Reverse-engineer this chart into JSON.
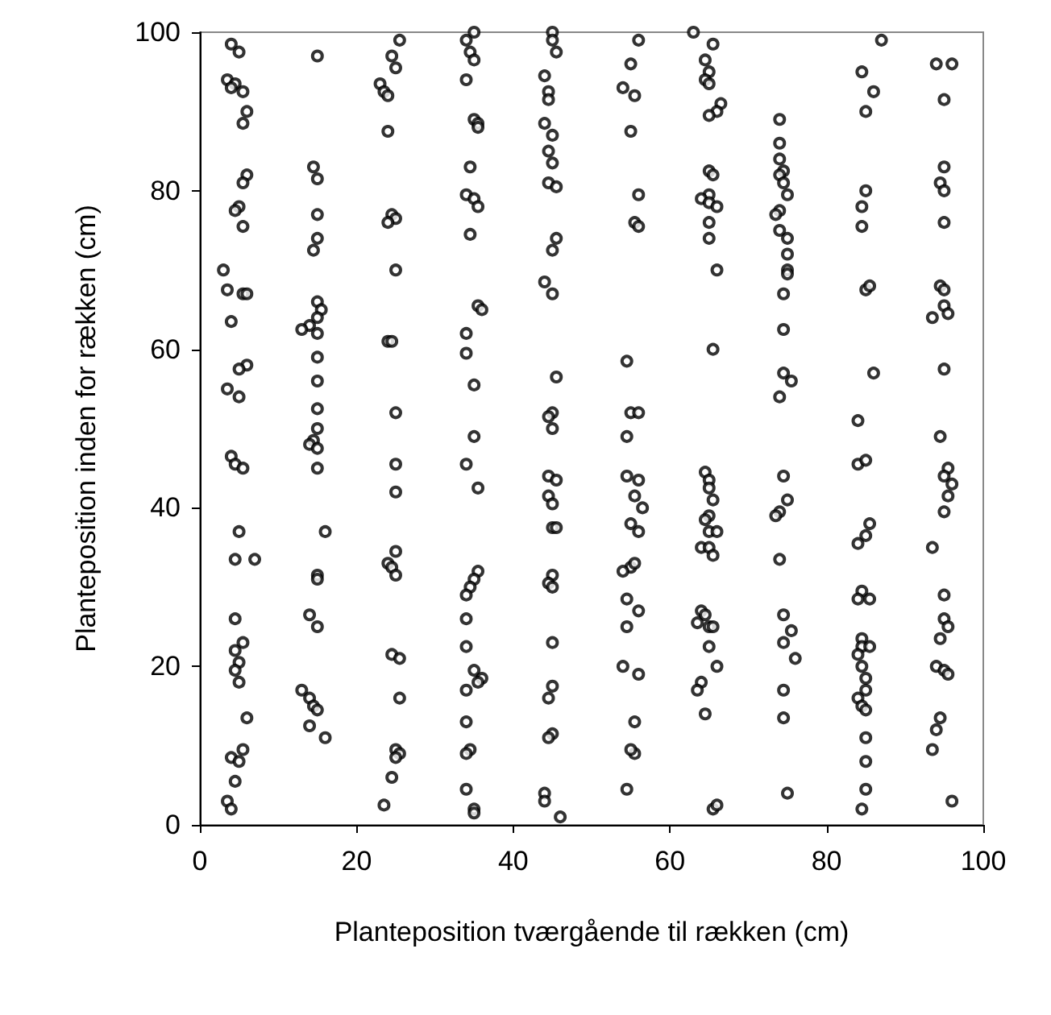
{
  "chart_data": {
    "type": "scatter",
    "xlabel": "Planteposition tværgående til rækken (cm)",
    "ylabel": "Planteposition inden for rækken (cm)",
    "color": "#000000",
    "marker": "circle",
    "grid": false,
    "xlim": [
      0,
      100
    ],
    "ylim": [
      0,
      100
    ],
    "xticks": [
      0,
      20,
      40,
      60,
      80,
      100
    ],
    "yticks": [
      0,
      20,
      40,
      60,
      80,
      100
    ],
    "x": [
      4,
      5,
      3.5,
      4.5,
      4,
      5.5,
      6,
      5.5,
      6,
      5.5,
      5,
      4.5,
      5.5,
      3,
      3.5,
      5.5,
      6,
      4,
      6,
      5,
      3.5,
      5,
      4,
      4.5,
      5.5,
      5,
      4.5,
      7,
      4.5,
      5.5,
      4.5,
      5,
      4.5,
      5,
      6,
      5.5,
      4,
      5,
      4.5,
      3.5,
      4,
      15,
      14.5,
      15,
      15,
      15,
      14.5,
      15,
      15.5,
      15,
      14,
      15,
      13,
      15,
      15,
      15,
      15,
      14.5,
      14,
      15,
      15,
      16,
      15,
      15,
      14,
      15,
      13,
      14,
      14.5,
      15,
      14,
      16,
      25.5,
      24.5,
      25,
      23,
      23.5,
      24,
      24,
      24.5,
      25,
      24,
      25,
      24,
      24.5,
      25,
      25,
      25,
      25,
      24,
      24.5,
      25,
      24.5,
      25.5,
      25.5,
      25,
      25.5,
      25,
      24.5,
      23.5,
      35,
      34,
      34.5,
      35,
      34,
      35,
      35.5,
      35.5,
      34.5,
      34,
      35,
      35.5,
      34.5,
      35.5,
      36,
      34,
      34,
      35,
      35,
      34,
      35.5,
      35.5,
      35,
      34.5,
      34,
      34,
      34,
      35,
      36,
      35.5,
      34,
      34,
      34.5,
      34,
      34,
      35,
      35,
      45,
      45,
      45.5,
      44,
      44.5,
      44.5,
      44,
      45,
      44.5,
      45,
      44.5,
      45.5,
      45.5,
      45,
      44,
      45,
      45.5,
      45,
      44.5,
      45,
      44.5,
      45.5,
      44.5,
      45,
      45,
      45.5,
      45,
      44.5,
      45,
      45,
      45,
      44.5,
      45,
      44.5,
      44,
      44,
      46,
      56,
      55,
      54,
      55.5,
      55,
      55.5,
      56,
      56,
      54.5,
      55,
      56,
      54.5,
      54.5,
      56,
      55.5,
      56.5,
      55,
      56,
      55,
      55.5,
      54,
      54.5,
      56,
      54.5,
      54,
      56,
      55.5,
      55.5,
      55,
      54.5,
      63,
      65.5,
      64.5,
      65,
      64.5,
      65,
      66.5,
      66,
      65,
      65,
      65.5,
      65,
      64,
      65,
      66,
      65,
      65,
      66,
      65.5,
      64.5,
      65,
      65,
      65.5,
      65,
      64.5,
      65,
      66,
      64,
      65,
      65.5,
      64,
      64.5,
      63.5,
      65,
      65.5,
      65,
      66,
      64,
      63.5,
      64.5,
      65.5,
      66,
      74,
      74,
      74,
      74.5,
      74,
      74.5,
      75,
      74,
      73.5,
      74,
      75,
      75,
      75,
      75,
      74.5,
      74.5,
      74.5,
      75.5,
      74,
      74.5,
      75,
      74,
      73.5,
      74,
      74.5,
      75.5,
      74.5,
      76,
      74.5,
      74.5,
      75,
      87,
      84.5,
      86,
      85,
      85,
      84.5,
      84.5,
      85,
      85.5,
      86,
      84,
      84,
      85,
      85.5,
      85,
      84,
      84.5,
      84,
      85.5,
      84.5,
      84.5,
      85.5,
      84,
      84.5,
      85,
      85,
      84,
      84.5,
      85,
      85,
      85,
      85,
      84.5,
      94,
      96,
      95,
      95,
      94.5,
      95,
      95,
      94.5,
      95,
      93.5,
      95,
      95.5,
      95,
      94.5,
      95.5,
      95,
      96,
      95.5,
      95,
      93.5,
      95,
      95,
      95.5,
      94.5,
      94,
      95,
      95.5,
      94.5,
      94,
      93.5,
      96
    ],
    "values": [
      98.5,
      97.5,
      94,
      93.5,
      93,
      92.5,
      90,
      88.5,
      82,
      81,
      78,
      77.5,
      75.5,
      70,
      67.5,
      67,
      67,
      63.5,
      58,
      57.5,
      55,
      54,
      46.5,
      45.5,
      45,
      37,
      33.5,
      33.5,
      26,
      23,
      22,
      20.5,
      19.5,
      18,
      13.5,
      9.5,
      8.5,
      8,
      5.5,
      3,
      2,
      97,
      83,
      81.5,
      77,
      74,
      72.5,
      66,
      65,
      64,
      63,
      62,
      62.5,
      59,
      56,
      52.5,
      50,
      48.5,
      48,
      47.5,
      45,
      37,
      31.5,
      31,
      26.5,
      25,
      17,
      16,
      15,
      14.5,
      12.5,
      11,
      99,
      97,
      95.5,
      93.5,
      92.5,
      92,
      87.5,
      77,
      76.5,
      76,
      70,
      61,
      61,
      52,
      45.5,
      42,
      34.5,
      33,
      32.5,
      31.5,
      21.5,
      21,
      16,
      9.5,
      9,
      8.5,
      6,
      2.5,
      100,
      99,
      97.5,
      96.5,
      94,
      89,
      88.5,
      88,
      83,
      79.5,
      79,
      78,
      74.5,
      65.5,
      65,
      62,
      59.5,
      55.5,
      49,
      45.5,
      42.5,
      32,
      31,
      30,
      29,
      26,
      22.5,
      19.5,
      18.5,
      18,
      17,
      13,
      9.5,
      9,
      4.5,
      2,
      1.5,
      100,
      99,
      97.5,
      94.5,
      92.5,
      91.5,
      88.5,
      87,
      85,
      83.5,
      81,
      80.5,
      74,
      72.5,
      68.5,
      67,
      56.5,
      52,
      51.5,
      50,
      44,
      43.5,
      41.5,
      40.5,
      37.5,
      37.5,
      31.5,
      30.5,
      30,
      23,
      17.5,
      16,
      11.5,
      11,
      4,
      3,
      1,
      99,
      96,
      93,
      92,
      87.5,
      76,
      75.5,
      79.5,
      58.5,
      52,
      52,
      49,
      44,
      43.5,
      41.5,
      40,
      38,
      37,
      32.5,
      33,
      32,
      28.5,
      27,
      25,
      20,
      19,
      13,
      9,
      9.5,
      4.5,
      100,
      98.5,
      96.5,
      95,
      94,
      93.5,
      91,
      90,
      89.5,
      82.5,
      82,
      79.5,
      79,
      78.5,
      78,
      76,
      74,
      70,
      60,
      44.5,
      43.5,
      42.5,
      41,
      39,
      38.5,
      37,
      37,
      35,
      35,
      34,
      27,
      26.5,
      25.5,
      25,
      25,
      22.5,
      20,
      18,
      17,
      14,
      2,
      2.5,
      89,
      86,
      84,
      82.5,
      82,
      81,
      79.5,
      77.5,
      77,
      75,
      74,
      72,
      70,
      69.5,
      67,
      62.5,
      57,
      56,
      54,
      44,
      41,
      39.5,
      39,
      33.5,
      26.5,
      24.5,
      23,
      21,
      17,
      13.5,
      4,
      99,
      95,
      92.5,
      90,
      80,
      78,
      75.5,
      67.5,
      68,
      57,
      51,
      45.5,
      46,
      38,
      36.5,
      35.5,
      29.5,
      28.5,
      28.5,
      23.5,
      22.5,
      22.5,
      21.5,
      20,
      18.5,
      17,
      16,
      15,
      14.5,
      11,
      8,
      4.5,
      2,
      96,
      96,
      91.5,
      83,
      81,
      80,
      76,
      68,
      67.5,
      64,
      65.5,
      64.5,
      57.5,
      49,
      45,
      44,
      43,
      41.5,
      39.5,
      35,
      29,
      26,
      25,
      23.5,
      20,
      19.5,
      19,
      13.5,
      12,
      9.5,
      3
    ]
  }
}
